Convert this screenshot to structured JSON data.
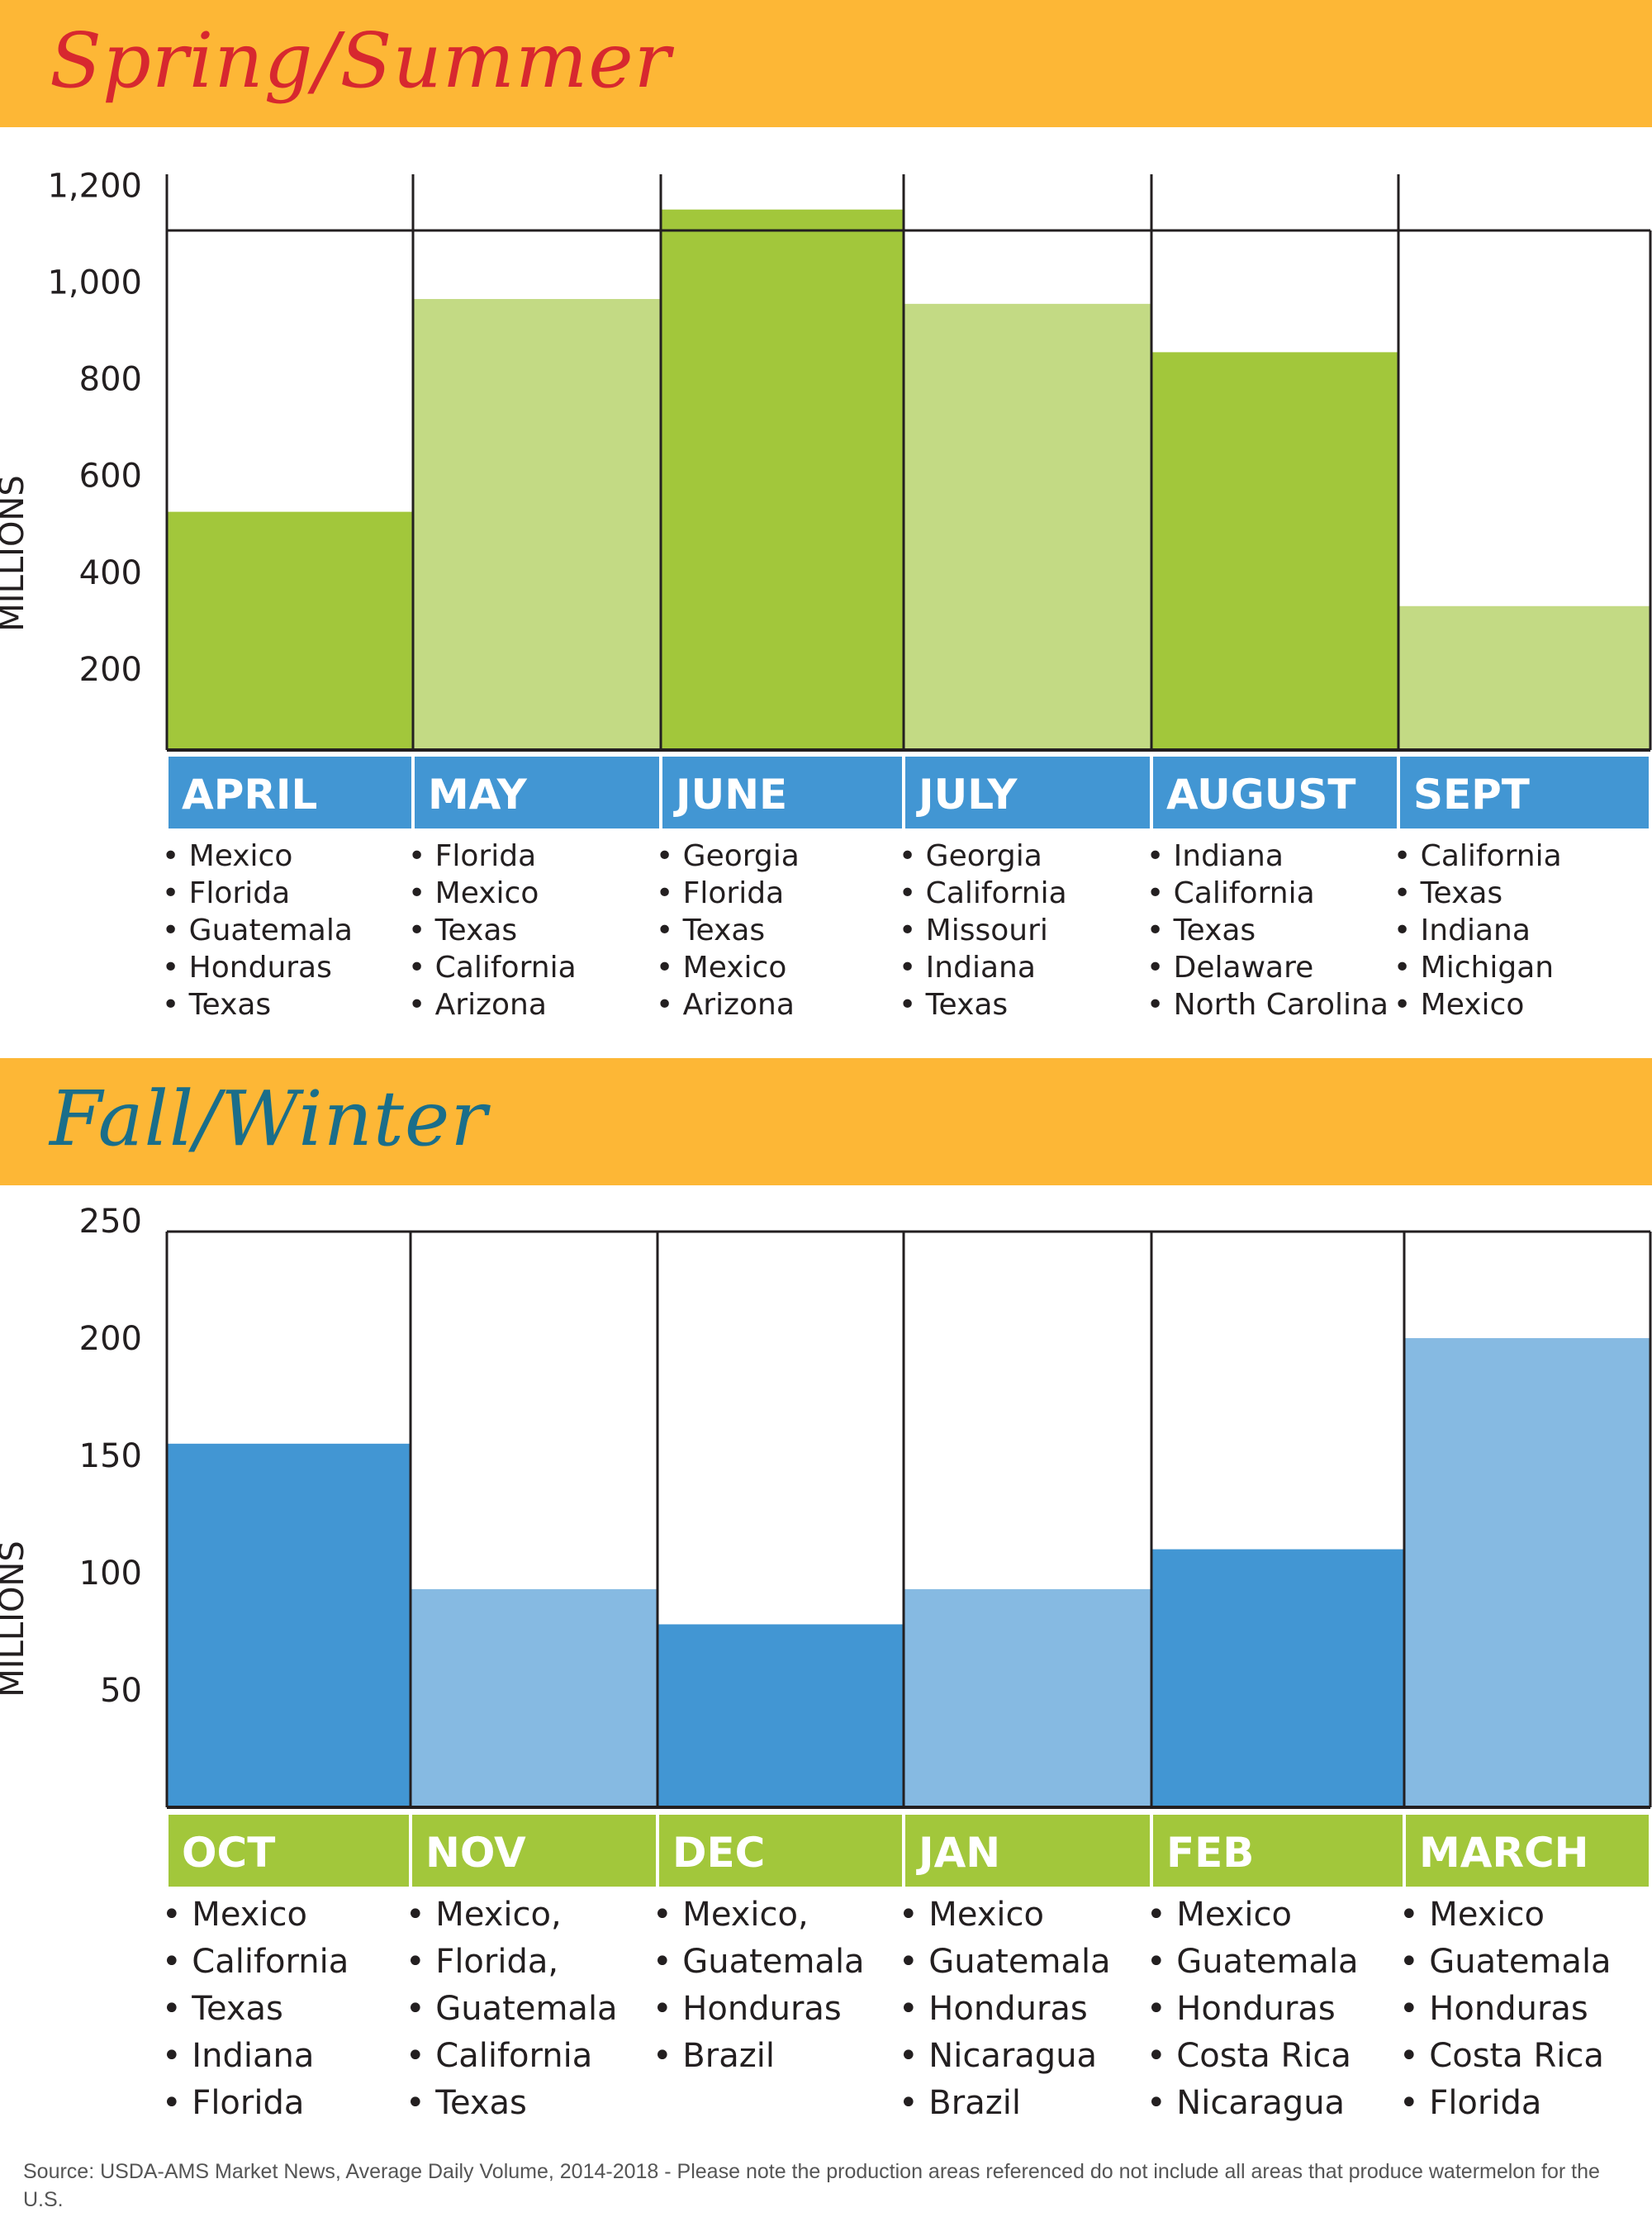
{
  "colors": {
    "banner": "#FDB736",
    "green_dark": "#A2C73B",
    "green_light": "#C3DA84",
    "blue_dark": "#4296D3",
    "blue_light": "#86BAE2",
    "title1": "#D7282F",
    "title2": "#1A6E8A"
  },
  "chart_data": [
    {
      "type": "bar",
      "title": "Spring/Summer",
      "ylabel": "MILLIONS",
      "yticks": [
        "1,200",
        "1,000",
        "800",
        "600",
        "400",
        "200"
      ],
      "ytick_values": [
        1200,
        1000,
        800,
        600,
        400,
        200
      ],
      "ylim": [
        0,
        1200
      ],
      "categories": [
        "APRIL",
        "MAY",
        "JUNE",
        "JULY",
        "AUGUST",
        "SEPT"
      ],
      "values": [
        525,
        965,
        1150,
        955,
        855,
        330
      ],
      "areas": [
        [
          "Mexico",
          "Florida",
          "Guatemala",
          "Honduras",
          "Texas"
        ],
        [
          "Florida",
          "Mexico",
          "Texas",
          "California",
          "Arizona"
        ],
        [
          "Georgia",
          "Florida",
          "Texas",
          "Mexico",
          "Arizona"
        ],
        [
          "Georgia",
          "California",
          "Missouri",
          "Indiana",
          "Texas"
        ],
        [
          "Indiana",
          "California",
          "Texas",
          "Delaware",
          "North Carolina"
        ],
        [
          "California",
          "Texas",
          "Indiana",
          "Michigan",
          "Mexico"
        ]
      ]
    },
    {
      "type": "bar",
      "title": "Fall/Winter",
      "ylabel": "MILLIONS",
      "yticks": [
        "250",
        "200",
        "150",
        "100",
        "50"
      ],
      "ytick_values": [
        250,
        200,
        150,
        100,
        50
      ],
      "ylim": [
        0,
        250
      ],
      "categories": [
        "OCT",
        "NOV",
        "DEC",
        "JAN",
        "FEB",
        "MARCH"
      ],
      "values": [
        155,
        93,
        78,
        93,
        110,
        200
      ],
      "areas": [
        [
          "Mexico",
          "California",
          "Texas",
          "Indiana",
          "Florida"
        ],
        [
          "Mexico,",
          "Florida,",
          "Guatemala",
          "California",
          "Texas"
        ],
        [
          "Mexico,",
          "Guatemala",
          "Honduras",
          "Brazil"
        ],
        [
          "Mexico",
          "Guatemala",
          "Honduras",
          "Nicaragua",
          "Brazil"
        ],
        [
          "Mexico",
          "Guatemala",
          "Honduras",
          "Costa Rica",
          "Nicaragua"
        ],
        [
          "Mexico",
          "Guatemala",
          "Honduras",
          "Costa Rica",
          "Florida"
        ]
      ]
    }
  ],
  "source": "Source: USDA-AMS Market News, Average Daily Volume, 2014-2018 - Please note the production areas referenced do not include all areas that produce watermelon for the U.S."
}
